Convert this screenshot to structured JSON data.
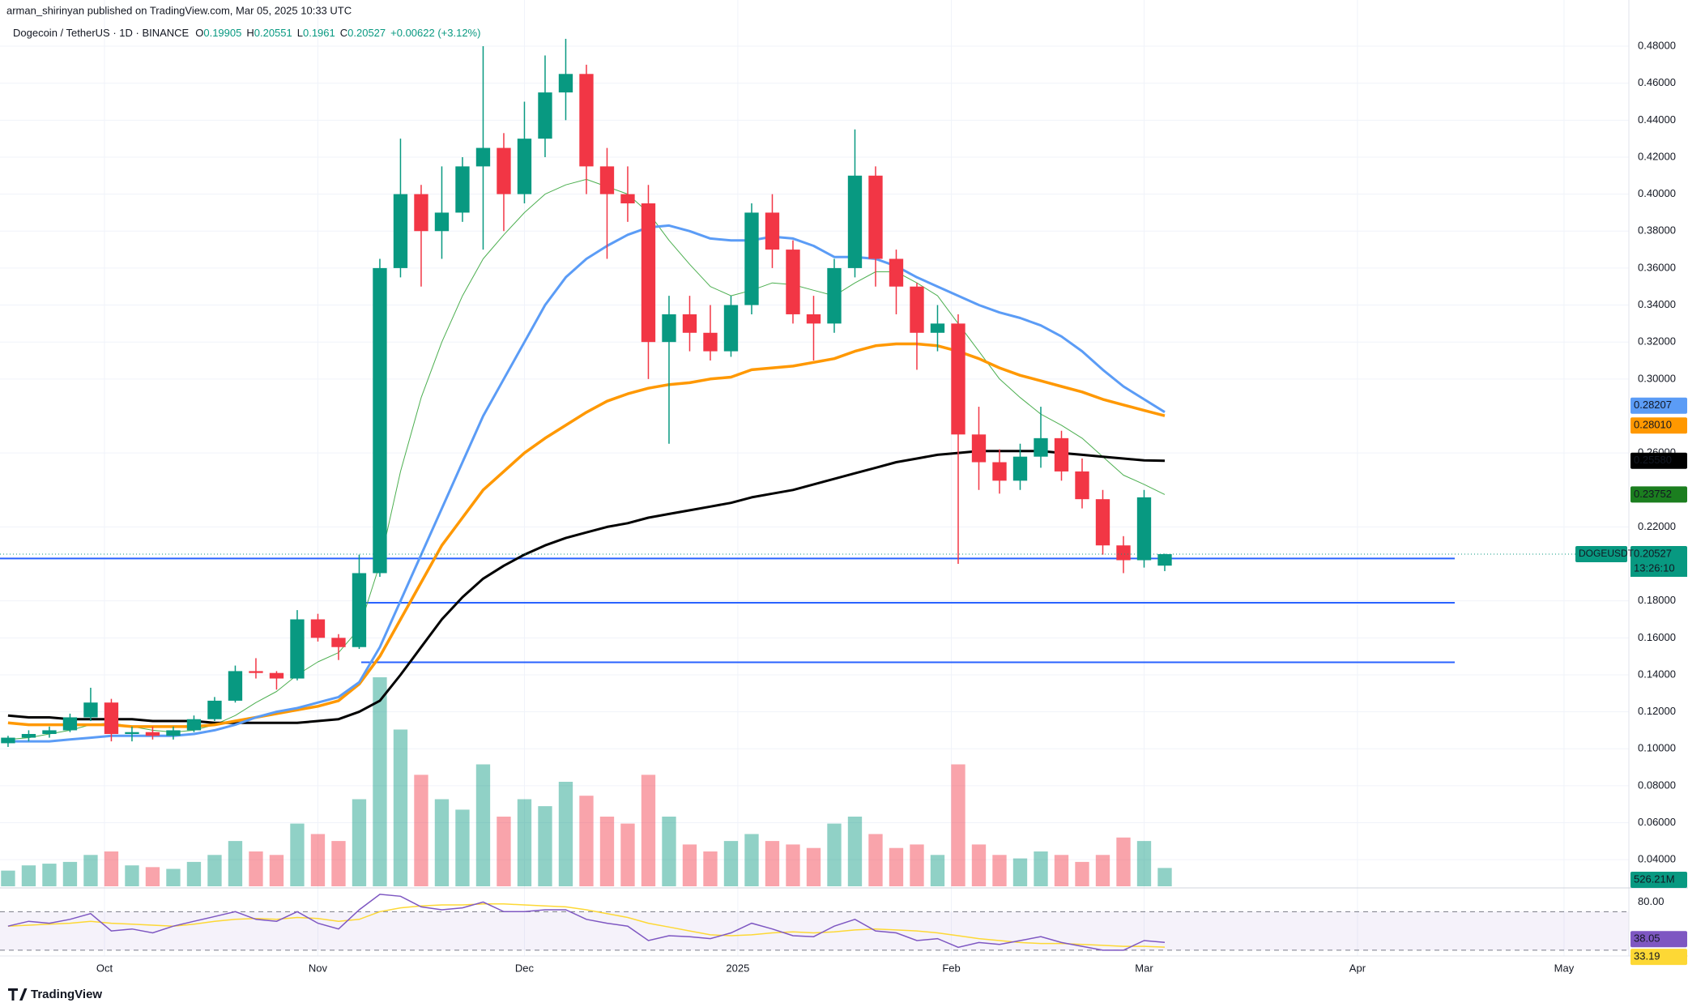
{
  "chart_data": {
    "type": "candlestick",
    "published": "arman_shirinyan published on TradingView.com, Mar 05, 2025 10:33 UTC",
    "title": "Dogecoin / TetherUS · 1D · BINANCE",
    "ohlc_labels": [
      "O",
      "H",
      "L",
      "C"
    ],
    "change": "+0.00622 (+3.12%)",
    "symbol": "DOGEUSDT",
    "countdown": "13:26:10",
    "footer": "TradingView",
    "up_color": "#089981",
    "down_color": "#f23645",
    "grid": true,
    "xlim": [
      -0.39,
      78.47
    ],
    "ylim": [
      0.03,
      0.505
    ],
    "xticks": [
      {
        "value": 4.667,
        "label": "Oct"
      },
      {
        "value": 15,
        "label": "Nov"
      },
      {
        "value": 25,
        "label": "Dec"
      },
      {
        "value": 35.33,
        "label": "2025"
      },
      {
        "value": 45.67,
        "label": "Feb"
      },
      {
        "value": 55,
        "label": "Mar"
      },
      {
        "value": 65.33,
        "label": "Apr"
      },
      {
        "value": 75.33,
        "label": "May"
      }
    ],
    "yticks": [
      {
        "value": 0.04,
        "label": "0.04000"
      },
      {
        "value": 0.06,
        "label": "0.06000"
      },
      {
        "value": 0.08,
        "label": "0.08000"
      },
      {
        "value": 0.1,
        "label": "0.10000"
      },
      {
        "value": 0.12,
        "label": "0.12000"
      },
      {
        "value": 0.14,
        "label": "0.14000"
      },
      {
        "value": 0.16,
        "label": "0.16000"
      },
      {
        "value": 0.18,
        "label": "0.18000"
      },
      {
        "value": 0.22,
        "label": "0.22000"
      },
      {
        "value": 0.26,
        "label": "0.26000"
      },
      {
        "value": 0.3,
        "label": "0.30000"
      },
      {
        "value": 0.32,
        "label": "0.32000"
      },
      {
        "value": 0.34,
        "label": "0.34000"
      },
      {
        "value": 0.36,
        "label": "0.36000"
      },
      {
        "value": 0.38,
        "label": "0.38000"
      },
      {
        "value": 0.4,
        "label": "0.40000"
      },
      {
        "value": 0.42,
        "label": "0.42000"
      },
      {
        "value": 0.44,
        "label": "0.44000"
      },
      {
        "value": 0.46,
        "label": "0.46000"
      },
      {
        "value": 0.48,
        "label": "0.48000"
      }
    ],
    "candles": [
      [
        0.103,
        0.107,
        0.101,
        0.106
      ],
      [
        0.106,
        0.11,
        0.104,
        0.108
      ],
      [
        0.108,
        0.112,
        0.106,
        0.11
      ],
      [
        0.11,
        0.119,
        0.109,
        0.117
      ],
      [
        0.117,
        0.133,
        0.115,
        0.125
      ],
      [
        0.125,
        0.127,
        0.104,
        0.108
      ],
      [
        0.108,
        0.112,
        0.104,
        0.109
      ],
      [
        0.109,
        0.112,
        0.105,
        0.107
      ],
      [
        0.107,
        0.112,
        0.105,
        0.11
      ],
      [
        0.11,
        0.118,
        0.109,
        0.116
      ],
      [
        0.116,
        0.128,
        0.115,
        0.126
      ],
      [
        0.126,
        0.145,
        0.125,
        0.142
      ],
      [
        0.142,
        0.149,
        0.138,
        0.141
      ],
      [
        0.141,
        0.142,
        0.132,
        0.138
      ],
      [
        0.138,
        0.175,
        0.137,
        0.17
      ],
      [
        0.17,
        0.173,
        0.158,
        0.16
      ],
      [
        0.16,
        0.162,
        0.148,
        0.155
      ],
      [
        0.155,
        0.205,
        0.154,
        0.195
      ],
      [
        0.195,
        0.365,
        0.193,
        0.36
      ],
      [
        0.36,
        0.43,
        0.355,
        0.4
      ],
      [
        0.4,
        0.405,
        0.35,
        0.38
      ],
      [
        0.38,
        0.415,
        0.365,
        0.39
      ],
      [
        0.39,
        0.42,
        0.385,
        0.415
      ],
      [
        0.415,
        0.48,
        0.37,
        0.425
      ],
      [
        0.425,
        0.433,
        0.38,
        0.4
      ],
      [
        0.4,
        0.45,
        0.395,
        0.43
      ],
      [
        0.43,
        0.475,
        0.42,
        0.455
      ],
      [
        0.455,
        0.484,
        0.44,
        0.465
      ],
      [
        0.465,
        0.47,
        0.4,
        0.415
      ],
      [
        0.415,
        0.425,
        0.365,
        0.4
      ],
      [
        0.4,
        0.415,
        0.385,
        0.395
      ],
      [
        0.395,
        0.405,
        0.3,
        0.32
      ],
      [
        0.32,
        0.345,
        0.265,
        0.335
      ],
      [
        0.335,
        0.345,
        0.315,
        0.325
      ],
      [
        0.325,
        0.34,
        0.31,
        0.315
      ],
      [
        0.315,
        0.345,
        0.312,
        0.34
      ],
      [
        0.34,
        0.395,
        0.335,
        0.39
      ],
      [
        0.39,
        0.4,
        0.36,
        0.37
      ],
      [
        0.37,
        0.375,
        0.33,
        0.335
      ],
      [
        0.335,
        0.345,
        0.31,
        0.33
      ],
      [
        0.33,
        0.365,
        0.325,
        0.36
      ],
      [
        0.36,
        0.435,
        0.355,
        0.41
      ],
      [
        0.41,
        0.415,
        0.35,
        0.365
      ],
      [
        0.365,
        0.37,
        0.335,
        0.35
      ],
      [
        0.35,
        0.352,
        0.305,
        0.325
      ],
      [
        0.325,
        0.34,
        0.315,
        0.33
      ],
      [
        0.33,
        0.335,
        0.2,
        0.27
      ],
      [
        0.27,
        0.285,
        0.24,
        0.255
      ],
      [
        0.255,
        0.262,
        0.238,
        0.245
      ],
      [
        0.245,
        0.265,
        0.24,
        0.258
      ],
      [
        0.258,
        0.285,
        0.252,
        0.268
      ],
      [
        0.268,
        0.272,
        0.245,
        0.25
      ],
      [
        0.25,
        0.257,
        0.23,
        0.235
      ],
      [
        0.235,
        0.24,
        0.205,
        0.21
      ],
      [
        0.21,
        0.215,
        0.195,
        0.202
      ],
      [
        0.202,
        0.24,
        0.198,
        0.236
      ],
      [
        0.19905,
        0.20551,
        0.1961,
        0.20527
      ]
    ],
    "moving_averages": [
      {
        "color": "#4caf50",
        "width": 1,
        "end_label": "0.23752",
        "values": [
          0.105,
          0.106,
          0.108,
          0.11,
          0.113,
          0.114,
          0.112,
          0.11,
          0.109,
          0.11,
          0.113,
          0.118,
          0.125,
          0.131,
          0.14,
          0.147,
          0.152,
          0.165,
          0.2,
          0.25,
          0.29,
          0.32,
          0.345,
          0.365,
          0.378,
          0.39,
          0.4,
          0.405,
          0.408,
          0.404,
          0.4,
          0.39,
          0.375,
          0.362,
          0.35,
          0.345,
          0.348,
          0.352,
          0.351,
          0.348,
          0.345,
          0.352,
          0.358,
          0.358,
          0.352,
          0.345,
          0.33,
          0.315,
          0.3,
          0.29,
          0.281,
          0.275,
          0.268,
          0.258,
          0.248,
          0.243,
          0.23752
        ]
      },
      {
        "color": "#000000",
        "width": 3,
        "end_label": "0.25580",
        "values": [
          0.118,
          0.117,
          0.117,
          0.116,
          0.116,
          0.116,
          0.116,
          0.115,
          0.115,
          0.115,
          0.114,
          0.114,
          0.114,
          0.114,
          0.114,
          0.115,
          0.116,
          0.12,
          0.126,
          0.14,
          0.155,
          0.17,
          0.182,
          0.192,
          0.199,
          0.205,
          0.21,
          0.214,
          0.217,
          0.22,
          0.222,
          0.225,
          0.227,
          0.229,
          0.231,
          0.233,
          0.236,
          0.238,
          0.24,
          0.243,
          0.246,
          0.249,
          0.252,
          0.255,
          0.257,
          0.259,
          0.26,
          0.261,
          0.261,
          0.261,
          0.261,
          0.26,
          0.259,
          0.258,
          0.257,
          0.256,
          0.2558
        ]
      },
      {
        "color": "#ff9800",
        "width": 3.5,
        "end_label": "0.28010",
        "values": [
          0.114,
          0.113,
          0.113,
          0.113,
          0.113,
          0.113,
          0.112,
          0.112,
          0.112,
          0.112,
          0.113,
          0.115,
          0.117,
          0.119,
          0.121,
          0.123,
          0.126,
          0.135,
          0.15,
          0.17,
          0.19,
          0.21,
          0.225,
          0.24,
          0.25,
          0.26,
          0.268,
          0.275,
          0.282,
          0.288,
          0.292,
          0.295,
          0.297,
          0.298,
          0.3,
          0.301,
          0.305,
          0.306,
          0.307,
          0.309,
          0.311,
          0.315,
          0.318,
          0.319,
          0.319,
          0.318,
          0.315,
          0.311,
          0.306,
          0.302,
          0.299,
          0.296,
          0.293,
          0.289,
          0.286,
          0.283,
          0.2801
        ]
      },
      {
        "color": "#5b9cf6",
        "width": 3,
        "end_label": "0.28207",
        "values": [
          0.104,
          0.104,
          0.104,
          0.105,
          0.106,
          0.107,
          0.107,
          0.107,
          0.107,
          0.108,
          0.11,
          0.113,
          0.117,
          0.12,
          0.122,
          0.125,
          0.128,
          0.136,
          0.155,
          0.18,
          0.205,
          0.23,
          0.255,
          0.28,
          0.3,
          0.32,
          0.34,
          0.355,
          0.365,
          0.372,
          0.378,
          0.382,
          0.383,
          0.38,
          0.376,
          0.375,
          0.375,
          0.377,
          0.376,
          0.372,
          0.366,
          0.366,
          0.365,
          0.361,
          0.355,
          0.35,
          0.345,
          0.34,
          0.336,
          0.333,
          0.329,
          0.323,
          0.315,
          0.305,
          0.296,
          0.289,
          0.28207
        ]
      }
    ],
    "levels": [
      0.2029,
      0.179,
      0.1468
    ],
    "level_color": "#2962ff",
    "volume": {
      "ylim": [
        0,
        15000
      ],
      "label": "526.21M",
      "values": [
        450,
        600,
        650,
        700,
        900,
        1000,
        600,
        550,
        500,
        700,
        900,
        1300,
        1000,
        900,
        1800,
        1500,
        1300,
        2500,
        6000,
        4500,
        3200,
        2500,
        2200,
        3500,
        2000,
        2500,
        2300,
        3000,
        2600,
        2000,
        1800,
        3200,
        2000,
        1200,
        1000,
        1300,
        1500,
        1300,
        1200,
        1100,
        1800,
        2000,
        1500,
        1100,
        1200,
        900,
        3500,
        1200,
        900,
        800,
        1000,
        900,
        700,
        900,
        1400,
        1300,
        526.21
      ]
    },
    "rsi": {
      "ylim": [
        24,
        93
      ],
      "yticks": [
        {
          "value": 80,
          "label": "80.00"
        }
      ],
      "bands": [
        30,
        70
      ],
      "color": "#7e57c2",
      "ma_color": "#fdd835",
      "values": [
        55,
        60,
        58,
        62,
        68,
        50,
        52,
        48,
        55,
        60,
        65,
        70,
        62,
        60,
        70,
        58,
        52,
        72,
        88,
        86,
        75,
        72,
        74,
        80,
        70,
        70,
        72,
        72,
        62,
        58,
        55,
        40,
        45,
        44,
        42,
        48,
        58,
        52,
        45,
        44,
        55,
        62,
        50,
        48,
        40,
        42,
        33,
        38,
        36,
        40,
        44,
        38,
        34,
        30,
        30,
        40,
        38.05
      ],
      "ma_values": [
        55,
        56,
        57,
        58,
        60,
        58,
        57,
        56,
        55,
        57,
        60,
        62,
        63,
        62,
        64,
        63,
        60,
        62,
        70,
        74,
        76,
        77,
        77,
        78,
        78,
        77,
        76,
        75,
        72,
        68,
        64,
        58,
        54,
        50,
        46,
        45,
        46,
        48,
        49,
        48,
        49,
        51,
        52,
        51,
        50,
        48,
        45,
        42,
        40,
        38,
        37,
        37,
        36,
        35,
        34,
        34,
        33.19
      ]
    }
  }
}
